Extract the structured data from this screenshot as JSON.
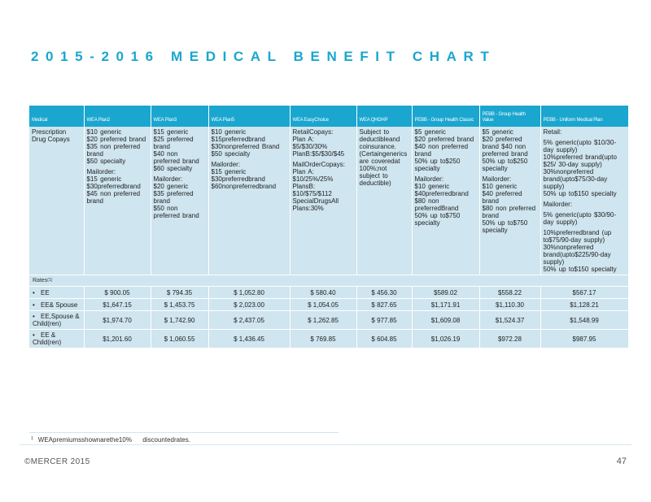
{
  "title": "2015-2016 MEDICAL BENEFIT CHART",
  "table": {
    "headers": [
      "Medical",
      "WEA Plan2",
      "WEA Plan3",
      "WEA Plan5",
      "WEA EasyChoice",
      "WEA QHDHP",
      "PEBB - Group Health Classic",
      "PEBB - Group Health Value",
      "PEBB - Uniform Medical Plan"
    ],
    "prescription": {
      "label": "Prescription Drug Copays",
      "cells": [
        [
          "$10 generic",
          "$20 preferred brand",
          "$35 non preferred brand",
          "$50 specialty",
          "|Mailorder:",
          "$15 generic",
          "$30preferredbrand",
          "$45 non preferred brand"
        ],
        [
          "$15 generic",
          "$25 preferred brand",
          "$40 non preferred brand",
          "$60 specialty",
          "|Mailorder:",
          "$20 generic",
          "$35 preferred brand",
          "$50 non preferred brand"
        ],
        [
          "$10 generic",
          "$15preferredbrand",
          "$30nonpreferred Brand",
          "$50 specialty",
          "|Mailorder:",
          "$15 generic",
          "$30preferredbrand",
          "$60nonpreferredbrand"
        ],
        [
          "RetailCopays:",
          "Plan A:",
          "$5/$30/30%",
          "PlanB:$5/$30/$45",
          "|MailOrderCopays:",
          "Plan A:",
          "$10/25%/25%",
          "PlansB:",
          "$10/$75/$112",
          "SpecialDrugsAll Plans:30%"
        ],
        [
          "Subject to deductibleand coinsurance.",
          "(Certaingenerics are coveredat 100%;not subject to deductible)"
        ],
        [
          "$5 generic",
          "$20 preferred brand",
          "$40 non preferred brand",
          "50% up to$250 specialty",
          "|Mailorder:",
          "$10 generic",
          "$40preferredbrand",
          "$80 non preferredBrand",
          "50% up to$750 specialty"
        ],
        [
          "$5 generic",
          "$20 preferred brand $40 non preferred brand",
          "50% up to$250 specialty",
          "|Mailorder:",
          "$10 generic",
          "$40 preferred brand",
          "$80 non preferred brand",
          "50% up to$750 specialty"
        ],
        [
          "Retail:",
          "|5% generic(upto $10/30-day supply)",
          "10%preferred brand(upto $25/ 30-day supply)",
          "30%nonpreferred brand(upto$75/30-day supply)",
          "50% up to$150 specialty",
          "|Mailorder:",
          "|5% generic(upto $30/90-day supply)",
          "|10%preferredbrand (up to$75/90-day supply)",
          "30%nonpreferred brand(upto$225/90-day supply)",
          "50% up to$150 specialty"
        ]
      ]
    },
    "rates_label": "Rates",
    "rates_sup": "(1)",
    "rates": [
      {
        "bullet": "•",
        "label": "EE",
        "values": [
          "$ 900.05",
          "$ 794.35",
          "$ 1,052.80",
          "$ 580.40",
          "$ 456.30",
          "$589.02",
          "$558.22",
          "$567.17"
        ]
      },
      {
        "bullet": "•",
        "label": "EE& Spouse",
        "values": [
          "$1,647.15",
          "$ 1,453.75",
          "$ 2,023.00",
          "$ 1,054.05",
          "$ 827.65",
          "$1,171.91",
          "$1,110.30",
          "$1,128.21"
        ]
      },
      {
        "bullet": "•",
        "label": "EE,Spouse & Child(ren)",
        "values": [
          "$1,974.70",
          "$ 1,742.90",
          "$ 2,437.05",
          "$ 1,262.85",
          "$ 977.85",
          "$1,609.08",
          "$1,524.37",
          "$1,548.99"
        ]
      },
      {
        "bullet": "•",
        "label": "EE & Child(ren)",
        "values": [
          "$1,201.60",
          "$ 1,060.55",
          "$ 1,436.45",
          "$ 769.85",
          "$ 604.85",
          "$1,026.19",
          "$972.28",
          "$987.95"
        ]
      }
    ]
  },
  "footnote": {
    "marker": "1",
    "text": "WEApremiumsshownarethe10%      discountedrates."
  },
  "copyright": "©MERCER 2015",
  "page_number": "47"
}
